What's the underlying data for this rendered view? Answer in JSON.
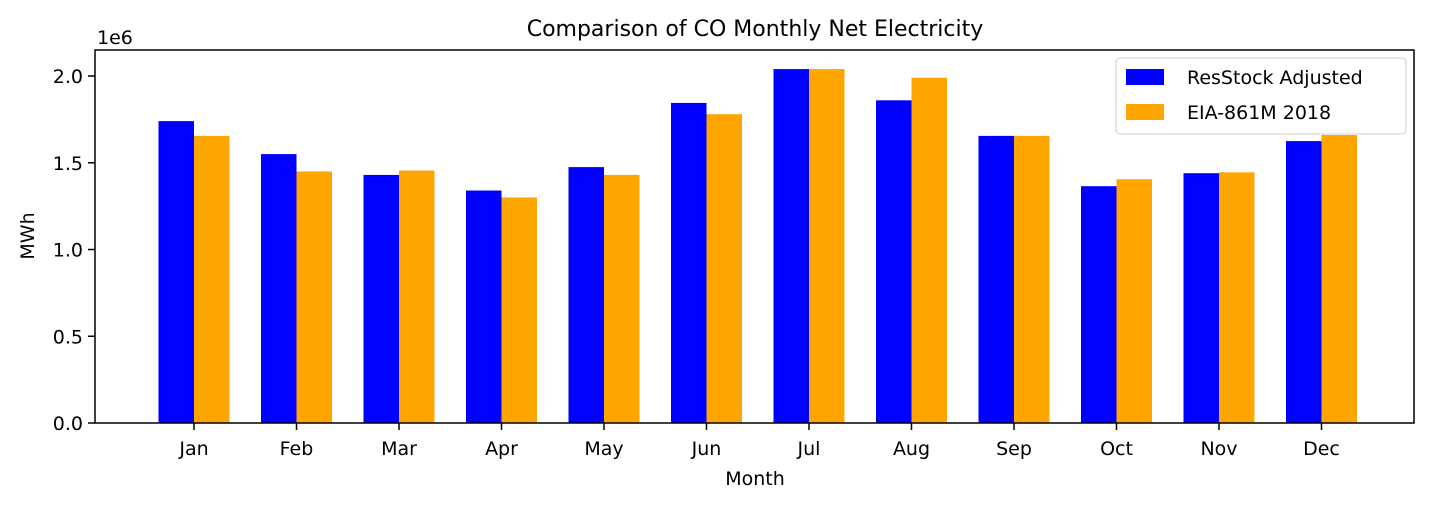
{
  "chart_data": {
    "type": "bar",
    "title": "Comparison of CO Monthly Net Electricity",
    "xlabel": "Month",
    "ylabel": "MWh",
    "y_offset_label": "1e6",
    "categories": [
      "Jan",
      "Feb",
      "Mar",
      "Apr",
      "May",
      "Jun",
      "Jul",
      "Aug",
      "Sep",
      "Oct",
      "Nov",
      "Dec"
    ],
    "series": [
      {
        "name": "ResStock Adjusted",
        "color": "#0000ff",
        "values": [
          1740000,
          1550000,
          1430000,
          1340000,
          1475000,
          1845000,
          2040000,
          1860000,
          1655000,
          1365000,
          1440000,
          1625000
        ]
      },
      {
        "name": "EIA-861M 2018",
        "color": "#ffa500",
        "values": [
          1655000,
          1450000,
          1455000,
          1300000,
          1430000,
          1780000,
          2040000,
          1990000,
          1655000,
          1405000,
          1445000,
          1660000
        ]
      }
    ],
    "ylim": [
      0,
      2150000
    ],
    "yticks": [
      0.0,
      0.5,
      1.0,
      1.5,
      2.0
    ],
    "ytick_labels": [
      "0.0",
      "0.5",
      "1.0",
      "1.5",
      "2.0"
    ],
    "legend_position": "upper-right",
    "grid": false
  }
}
